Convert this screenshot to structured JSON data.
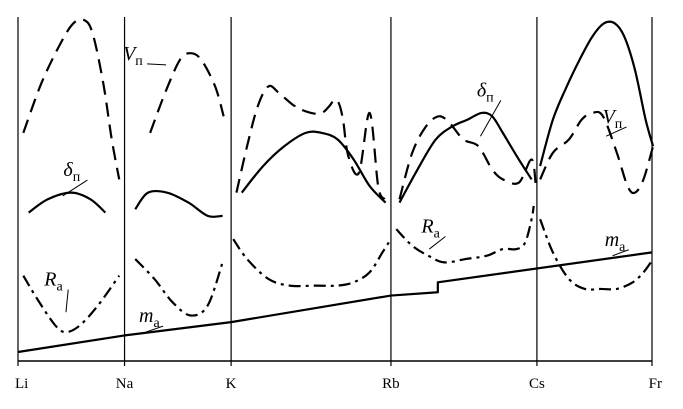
{
  "chart_data": {
    "type": "line",
    "title": "",
    "xlabel": "",
    "ylabel": "",
    "grid": false,
    "legend": "none",
    "categories": [
      "Li",
      "Na",
      "K",
      "Rb",
      "Cs",
      "Fr"
    ],
    "category_positions": [
      0,
      1,
      2,
      3.5,
      4.87,
      5.95
    ],
    "ylim": [
      0,
      100
    ],
    "series": [
      {
        "key": "V_li",
        "style": "dashed",
        "group": "Li",
        "x": [
          0.05,
          0.22,
          0.4,
          0.52,
          0.62,
          0.7,
          0.8,
          0.88,
          0.95
        ],
        "y": [
          66,
          81,
          93,
          99,
          100,
          96,
          81,
          64,
          52
        ]
      },
      {
        "key": "d_li",
        "style": "solid",
        "group": "Li",
        "x": [
          0.1,
          0.28,
          0.5,
          0.68,
          0.82
        ],
        "y": [
          42,
          46,
          48,
          46,
          42
        ]
      },
      {
        "key": "R_li",
        "style": "dashdot",
        "group": "Li",
        "x": [
          0.05,
          0.18,
          0.35,
          0.45,
          0.58,
          0.75,
          0.95
        ],
        "y": [
          23,
          16,
          8,
          6,
          8,
          14,
          23
        ]
      },
      {
        "key": "V_na",
        "style": "dashed",
        "group": "Na",
        "x": [
          0.24,
          0.38,
          0.52,
          0.62,
          0.72,
          0.85,
          0.93
        ],
        "y": [
          66,
          78,
          88,
          90,
          88,
          80,
          71
        ]
      },
      {
        "key": "d_na",
        "style": "solid",
        "group": "Na",
        "x": [
          0.1,
          0.22,
          0.4,
          0.6,
          0.78,
          0.92
        ],
        "y": [
          43,
          48,
          48,
          45,
          41,
          41
        ]
      },
      {
        "key": "R_na",
        "style": "dashdot",
        "group": "Na",
        "x": [
          0.1,
          0.28,
          0.45,
          0.62,
          0.78,
          0.92
        ],
        "y": [
          28,
          22,
          15,
          11,
          14,
          27
        ]
      },
      {
        "key": "V_k",
        "style": "dashed",
        "group": "K",
        "x": [
          0.05,
          0.15,
          0.25,
          0.35,
          0.45,
          0.6,
          0.75,
          0.85,
          0.92,
          0.97,
          1.01,
          1.05,
          1.1,
          1.2,
          1.3,
          1.38,
          1.44
        ],
        "y": [
          48,
          62,
          74,
          80,
          78,
          74,
          72,
          72,
          74,
          76,
          75,
          70,
          59,
          54,
          72,
          50,
          46
        ]
      },
      {
        "key": "d_k",
        "style": "solid",
        "group": "K",
        "x": [
          0.1,
          0.3,
          0.5,
          0.7,
          0.85,
          1.0,
          1.15,
          1.3,
          1.45
        ],
        "y": [
          48,
          56,
          62,
          66,
          66,
          64,
          58,
          50,
          45
        ]
      },
      {
        "key": "R_k",
        "style": "dashdot",
        "group": "K",
        "x": [
          0.02,
          0.15,
          0.35,
          0.55,
          0.8,
          1.0,
          1.15,
          1.3,
          1.42,
          1.48
        ],
        "y": [
          34,
          28,
          22,
          20,
          20,
          20,
          21,
          24,
          30,
          33
        ]
      },
      {
        "key": "V_rb",
        "style": "dashed",
        "group": "Rb",
        "x": [
          0.08,
          0.2,
          0.33,
          0.45,
          0.55,
          0.68,
          0.82,
          0.95,
          1.05,
          1.2,
          1.32,
          1.36
        ],
        "y": [
          46,
          60,
          68,
          71,
          69,
          64,
          62,
          55,
          52,
          51,
          58,
          50
        ]
      },
      {
        "key": "d_rb",
        "style": "solid",
        "group": "Rb",
        "x": [
          0.08,
          0.25,
          0.42,
          0.58,
          0.72,
          0.85,
          0.95,
          1.05,
          1.2,
          1.32
        ],
        "y": [
          45,
          55,
          64,
          68,
          70,
          72,
          71,
          66,
          58,
          52
        ]
      },
      {
        "key": "R_rb",
        "style": "dashdot",
        "group": "Rb",
        "x": [
          0.05,
          0.2,
          0.35,
          0.5,
          0.7,
          0.9,
          1.05,
          1.18,
          1.26,
          1.32,
          1.34
        ],
        "y": [
          37,
          32,
          29,
          27,
          28,
          29,
          31,
          31,
          33,
          40,
          44
        ]
      },
      {
        "key": "d_cs",
        "style": "solid",
        "group": "Cs",
        "x": [
          0.03,
          0.15,
          0.28,
          0.4,
          0.52,
          0.63,
          0.73,
          0.82,
          0.92,
          1.02,
          1.09
        ],
        "y": [
          56,
          70,
          80,
          88,
          95,
          99,
          99,
          95,
          85,
          70,
          62
        ]
      },
      {
        "key": "V_cs",
        "style": "dashed",
        "group": "Cs",
        "x": [
          0.03,
          0.15,
          0.3,
          0.42,
          0.52,
          0.62,
          0.75,
          0.85,
          0.92,
          1.0,
          1.09
        ],
        "y": [
          52,
          60,
          64,
          70,
          72,
          71,
          60,
          50,
          48,
          52,
          62
        ]
      },
      {
        "key": "R_cs",
        "style": "dashdot",
        "group": "Cs",
        "x": [
          0.03,
          0.15,
          0.3,
          0.45,
          0.6,
          0.75,
          0.9,
          1.0,
          1.09
        ],
        "y": [
          40,
          30,
          22,
          19,
          19,
          19,
          21,
          24,
          28
        ]
      },
      {
        "key": "m_all",
        "style": "solid",
        "group": "all",
        "x": [
          0,
          1,
          2,
          3.5,
          3.94,
          3.94,
          5.95
        ],
        "y": [
          0,
          5,
          9,
          17,
          18,
          21,
          30
        ]
      }
    ],
    "annotations": [
      {
        "key": "lab_V_na",
        "main": "V",
        "sub": "п",
        "tx": 1.08,
        "ty": 88,
        "ax": 1.39,
        "ay": 86.5
      },
      {
        "key": "lab_d_li",
        "main": "δ",
        "sub": "п",
        "tx": 0.52,
        "ty": 53,
        "ax": 0.42,
        "ay": 47
      },
      {
        "key": "lab_R_li",
        "main": "R",
        "sub": "а",
        "tx": 0.34,
        "ty": 20,
        "ax": 0.45,
        "ay": 12
      },
      {
        "key": "lab_m_li",
        "main": "m",
        "sub": "а",
        "tx": 1.23,
        "ty": 9,
        "ax": 1.2,
        "ay": 6
      },
      {
        "key": "lab_d_rb",
        "main": "δ",
        "sub": "п",
        "tx": 4.4,
        "ty": 77,
        "ax": 4.34,
        "ay": 65
      },
      {
        "key": "lab_R_rb",
        "main": "R",
        "sub": "а",
        "tx": 3.88,
        "ty": 36,
        "ax": 3.86,
        "ay": 31
      },
      {
        "key": "lab_V_cs",
        "main": "V",
        "sub": "п",
        "tx": 5.58,
        "ty": 69,
        "ax": 5.52,
        "ay": 65
      },
      {
        "key": "lab_m_cs",
        "main": "m",
        "sub": "а",
        "tx": 5.6,
        "ty": 32,
        "ax": 5.58,
        "ay": 29
      }
    ]
  }
}
